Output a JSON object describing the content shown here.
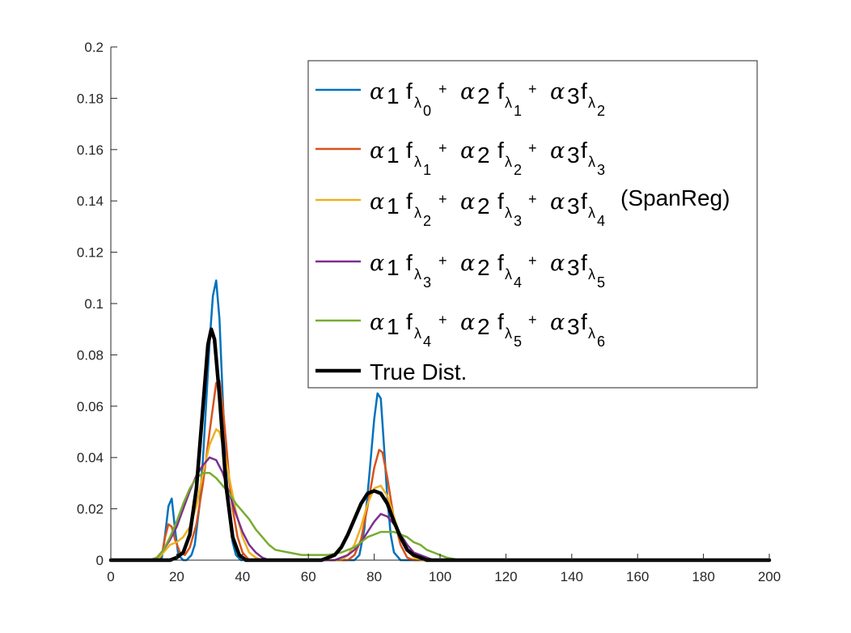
{
  "chart_data": {
    "type": "line",
    "title": "",
    "xlabel": "",
    "ylabel": "",
    "xlim": [
      0,
      200
    ],
    "ylim": [
      0,
      0.2
    ],
    "x_ticks": [
      0,
      20,
      40,
      60,
      80,
      100,
      120,
      140,
      160,
      180,
      200
    ],
    "y_ticks": [
      0,
      0.02,
      0.04,
      0.06,
      0.08,
      0.1,
      0.12,
      0.14,
      0.16,
      0.18,
      0.2
    ],
    "x_tick_labels": [
      "0",
      "20",
      "40",
      "60",
      "80",
      "100",
      "120",
      "140",
      "160",
      "180",
      "200"
    ],
    "y_tick_labels": [
      "0",
      "0.02",
      "0.04",
      "0.06",
      "0.08",
      "0.1",
      "0.12",
      "0.14",
      "0.16",
      "0.18",
      "0.2"
    ],
    "grid": false,
    "legend_position": "top-right",
    "legend": {
      "greek": "α",
      "f": "f",
      "lambda": "λ",
      "plus": "+",
      "one": "1",
      "two": "2",
      "three": "3",
      "spanreg": "(SpanReg)",
      "true_dist": "True Dist."
    },
    "series": [
      {
        "lambda_indices": [
          "0",
          "1",
          "2"
        ],
        "color": "#0072BD",
        "line_width": 2.5,
        "points": [
          [
            0,
            0
          ],
          [
            14,
            0
          ],
          [
            15.5,
            0.001
          ],
          [
            16.5,
            0.01
          ],
          [
            17.5,
            0.021
          ],
          [
            18.5,
            0.024
          ],
          [
            19.5,
            0.012
          ],
          [
            20.5,
            0.002
          ],
          [
            22,
            0
          ],
          [
            23,
            0
          ],
          [
            24.5,
            0.002
          ],
          [
            25.5,
            0.006
          ],
          [
            27,
            0.022
          ],
          [
            28,
            0.04
          ],
          [
            29,
            0.062
          ],
          [
            30,
            0.085
          ],
          [
            31,
            0.103
          ],
          [
            32,
            0.109
          ],
          [
            33,
            0.094
          ],
          [
            34,
            0.063
          ],
          [
            35,
            0.036
          ],
          [
            36,
            0.017
          ],
          [
            37,
            0.007
          ],
          [
            38,
            0.002
          ],
          [
            39.5,
            0
          ],
          [
            74,
            0
          ],
          [
            75.5,
            0.002
          ],
          [
            77,
            0.012
          ],
          [
            78.5,
            0.033
          ],
          [
            80,
            0.055
          ],
          [
            81,
            0.065
          ],
          [
            82,
            0.063
          ],
          [
            83,
            0.044
          ],
          [
            84,
            0.024
          ],
          [
            85,
            0.01
          ],
          [
            86,
            0.003
          ],
          [
            88,
            0
          ],
          [
            200,
            0
          ]
        ]
      },
      {
        "lambda_indices": [
          "1",
          "2",
          "3"
        ],
        "color": "#D95319",
        "line_width": 2.5,
        "points": [
          [
            0,
            0
          ],
          [
            14,
            0
          ],
          [
            15.5,
            0.002
          ],
          [
            16.5,
            0.009
          ],
          [
            17.5,
            0.014
          ],
          [
            18.5,
            0.013
          ],
          [
            19.5,
            0.008
          ],
          [
            21,
            0.003
          ],
          [
            22.5,
            0.002
          ],
          [
            24,
            0.005
          ],
          [
            26,
            0.014
          ],
          [
            28,
            0.03
          ],
          [
            30,
            0.05
          ],
          [
            32,
            0.069
          ],
          [
            33,
            0.07
          ],
          [
            34,
            0.06
          ],
          [
            35,
            0.046
          ],
          [
            36,
            0.031
          ],
          [
            37,
            0.02
          ],
          [
            38.5,
            0.009
          ],
          [
            40,
            0.003
          ],
          [
            42,
            0
          ],
          [
            72,
            0
          ],
          [
            74,
            0.002
          ],
          [
            76,
            0.008
          ],
          [
            78,
            0.021
          ],
          [
            80,
            0.036
          ],
          [
            81.5,
            0.043
          ],
          [
            82.5,
            0.042
          ],
          [
            84,
            0.032
          ],
          [
            86,
            0.016
          ],
          [
            88,
            0.006
          ],
          [
            90,
            0.001
          ],
          [
            92,
            0
          ],
          [
            200,
            0
          ]
        ]
      },
      {
        "lambda_indices": [
          "2",
          "3",
          "4"
        ],
        "color": "#EDB120",
        "line_width": 2.5,
        "points": [
          [
            0,
            0
          ],
          [
            14,
            0
          ],
          [
            16,
            0.003
          ],
          [
            18,
            0.006
          ],
          [
            20,
            0.007
          ],
          [
            22,
            0.009
          ],
          [
            24,
            0.013
          ],
          [
            26,
            0.021
          ],
          [
            28,
            0.034
          ],
          [
            30,
            0.045
          ],
          [
            32,
            0.051
          ],
          [
            33,
            0.05
          ],
          [
            34,
            0.045
          ],
          [
            36,
            0.032
          ],
          [
            38,
            0.019
          ],
          [
            40,
            0.009
          ],
          [
            42,
            0.003
          ],
          [
            44,
            0.001
          ],
          [
            46,
            0
          ],
          [
            70,
            0
          ],
          [
            72,
            0.002
          ],
          [
            74,
            0.006
          ],
          [
            76,
            0.013
          ],
          [
            78,
            0.022
          ],
          [
            80,
            0.028
          ],
          [
            82,
            0.029
          ],
          [
            84,
            0.025
          ],
          [
            86,
            0.017
          ],
          [
            88,
            0.009
          ],
          [
            90,
            0.004
          ],
          [
            92,
            0.001
          ],
          [
            94,
            0
          ],
          [
            200,
            0
          ]
        ]
      },
      {
        "lambda_indices": [
          "3",
          "4",
          "5"
        ],
        "color": "#7E2F8E",
        "line_width": 2.5,
        "points": [
          [
            0,
            0
          ],
          [
            12,
            0
          ],
          [
            14,
            0.001
          ],
          [
            16,
            0.004
          ],
          [
            18,
            0.008
          ],
          [
            20,
            0.013
          ],
          [
            22,
            0.02
          ],
          [
            24,
            0.027
          ],
          [
            26,
            0.033
          ],
          [
            28,
            0.037
          ],
          [
            30,
            0.04
          ],
          [
            32,
            0.039
          ],
          [
            34,
            0.034
          ],
          [
            36,
            0.026
          ],
          [
            38,
            0.018
          ],
          [
            40,
            0.011
          ],
          [
            42,
            0.006
          ],
          [
            44,
            0.003
          ],
          [
            46,
            0.001
          ],
          [
            48,
            0
          ],
          [
            68,
            0
          ],
          [
            70,
            0.001
          ],
          [
            72,
            0.002
          ],
          [
            74,
            0.004
          ],
          [
            76,
            0.007
          ],
          [
            78,
            0.011
          ],
          [
            80,
            0.015
          ],
          [
            82,
            0.018
          ],
          [
            84,
            0.017
          ],
          [
            86,
            0.014
          ],
          [
            88,
            0.01
          ],
          [
            90,
            0.006
          ],
          [
            92,
            0.003
          ],
          [
            94,
            0.002
          ],
          [
            96,
            0.001
          ],
          [
            98,
            0
          ],
          [
            200,
            0
          ]
        ]
      },
      {
        "lambda_indices": [
          "4",
          "5",
          "6"
        ],
        "color": "#77AC30",
        "line_width": 2.5,
        "points": [
          [
            0,
            0
          ],
          [
            12,
            0
          ],
          [
            14,
            0.001
          ],
          [
            16,
            0.004
          ],
          [
            18,
            0.009
          ],
          [
            20,
            0.015
          ],
          [
            22,
            0.022
          ],
          [
            24,
            0.028
          ],
          [
            26,
            0.032
          ],
          [
            28,
            0.034
          ],
          [
            30,
            0.034
          ],
          [
            32,
            0.032
          ],
          [
            34,
            0.029
          ],
          [
            36,
            0.026
          ],
          [
            38,
            0.022
          ],
          [
            40,
            0.019
          ],
          [
            42,
            0.016
          ],
          [
            44,
            0.012
          ],
          [
            46,
            0.009
          ],
          [
            48,
            0.006
          ],
          [
            50,
            0.004
          ],
          [
            54,
            0.003
          ],
          [
            58,
            0.002
          ],
          [
            62,
            0.002
          ],
          [
            66,
            0.002
          ],
          [
            70,
            0.003
          ],
          [
            72,
            0.004
          ],
          [
            74,
            0.005
          ],
          [
            76,
            0.007
          ],
          [
            78,
            0.009
          ],
          [
            80,
            0.01
          ],
          [
            82,
            0.011
          ],
          [
            84,
            0.011
          ],
          [
            86,
            0.011
          ],
          [
            88,
            0.01
          ],
          [
            90,
            0.009
          ],
          [
            92,
            0.007
          ],
          [
            94,
            0.006
          ],
          [
            96,
            0.004
          ],
          [
            98,
            0.003
          ],
          [
            100,
            0.002
          ],
          [
            102,
            0.001
          ],
          [
            106,
            0
          ],
          [
            200,
            0
          ]
        ]
      },
      {
        "lambda_indices": [],
        "color": "#000000",
        "line_width": 4.5,
        "points": [
          [
            0,
            0
          ],
          [
            18,
            0
          ],
          [
            20,
            0.001
          ],
          [
            22,
            0.003
          ],
          [
            24,
            0.01
          ],
          [
            26,
            0.028
          ],
          [
            28,
            0.06
          ],
          [
            29.5,
            0.084
          ],
          [
            30.5,
            0.09
          ],
          [
            31.5,
            0.086
          ],
          [
            33,
            0.064
          ],
          [
            35,
            0.029
          ],
          [
            37,
            0.009
          ],
          [
            39,
            0.002
          ],
          [
            41,
            0
          ],
          [
            64,
            0
          ],
          [
            66,
            0.001
          ],
          [
            68,
            0.002
          ],
          [
            70,
            0.005
          ],
          [
            72,
            0.01
          ],
          [
            74,
            0.016
          ],
          [
            76,
            0.022
          ],
          [
            78,
            0.026
          ],
          [
            80,
            0.027
          ],
          [
            82,
            0.026
          ],
          [
            84,
            0.022
          ],
          [
            86,
            0.015
          ],
          [
            88,
            0.009
          ],
          [
            90,
            0.004
          ],
          [
            92,
            0.002
          ],
          [
            94,
            0.001
          ],
          [
            96,
            0
          ],
          [
            200,
            0
          ]
        ]
      }
    ]
  }
}
